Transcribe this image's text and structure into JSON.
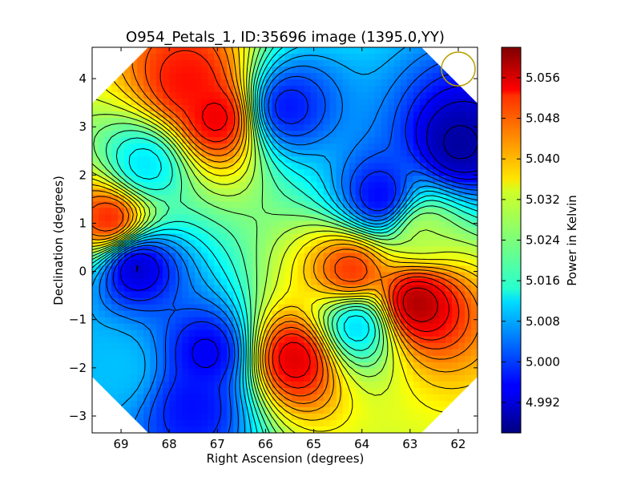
{
  "chart_data": {
    "type": "heatmap",
    "title": "O954_Petals_1, ID:35696 image (1395.0,YY)",
    "xlabel": "Right Ascension (degrees)",
    "ylabel": "Declination (degrees)",
    "colorbar_label": "Power in Kelvin",
    "x_ticks": [
      "69",
      "68",
      "67",
      "66",
      "65",
      "64",
      "63",
      "62"
    ],
    "x_tick_values": [
      69,
      68,
      67,
      66,
      65,
      64,
      63,
      62
    ],
    "y_ticks": [
      "4",
      "3",
      "2",
      "1",
      "0",
      "−1",
      "−2",
      "−3"
    ],
    "y_tick_values": [
      4,
      3,
      2,
      1,
      0,
      -1,
      -2,
      -3
    ],
    "colorbar_ticks": [
      "5.056",
      "5.048",
      "5.040",
      "5.032",
      "5.024",
      "5.016",
      "5.008",
      "5.000",
      "4.992"
    ],
    "colorbar_tick_values": [
      5.056,
      5.048,
      5.04,
      5.032,
      5.024,
      5.016,
      5.008,
      5.0,
      4.992
    ],
    "xlim": [
      69.6,
      61.6
    ],
    "ylim": [
      -3.35,
      4.65
    ],
    "clim": [
      4.986,
      5.062
    ],
    "colormap": "jet",
    "contours": true,
    "features": [
      {
        "ra": 67.0,
        "dec": 3.2,
        "value": 5.055
      },
      {
        "ra": 67.6,
        "dec": 3.9,
        "value": 5.052
      },
      {
        "ra": 65.6,
        "dec": 3.4,
        "value": 4.996
      },
      {
        "ra": 68.5,
        "dec": 2.2,
        "value": 5.012
      },
      {
        "ra": 62.0,
        "dec": 2.6,
        "value": 4.988
      },
      {
        "ra": 63.6,
        "dec": 1.5,
        "value": 4.994
      },
      {
        "ra": 69.2,
        "dec": 1.05,
        "value": 5.052
      },
      {
        "ra": 68.7,
        "dec": 0.15,
        "value": 4.99
      },
      {
        "ra": 62.8,
        "dec": 0.85,
        "value": 5.028
      },
      {
        "ra": 62.9,
        "dec": -0.65,
        "value": 5.06
      },
      {
        "ra": 64.2,
        "dec": 0.0,
        "value": 5.05
      },
      {
        "ra": 64.1,
        "dec": -1.1,
        "value": 5.01
      },
      {
        "ra": 65.4,
        "dec": -1.8,
        "value": 5.056
      },
      {
        "ra": 67.2,
        "dec": -1.7,
        "value": 4.994
      },
      {
        "ra": 67.5,
        "dec": -2.8,
        "value": 4.996
      },
      {
        "ra": 69.0,
        "dec": -2.0,
        "value": 5.01
      }
    ],
    "beam_marker": {
      "ra": 62.0,
      "dec": 4.2,
      "radius_deg": 0.35,
      "color": "#b8a000"
    },
    "grid": false
  }
}
